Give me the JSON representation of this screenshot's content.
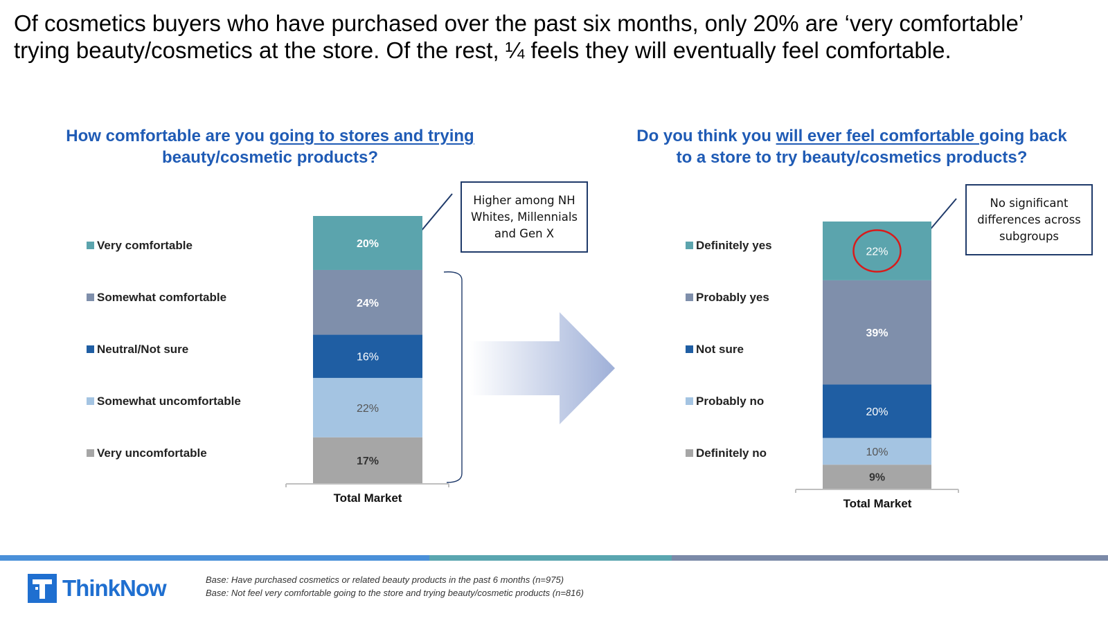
{
  "headline": "Of cosmetics buyers who have purchased over the past six months, only 20% are ‘very comfortable’ trying beauty/cosmetics at the store. Of the rest, ¼ feels they will eventually feel comfortable.",
  "left_question": {
    "part1": "How comfortable are you ",
    "part2_underlined": "going to stores and trying ",
    "part3": "beauty/cosmetic products?"
  },
  "right_question": {
    "part1": "Do you think you ",
    "part2_underlined": "will ever feel comfortable ",
    "part3": "going back to a store to try beauty/cosmetics products?"
  },
  "callouts": {
    "left": "Higher among NH Whites, Millennials and Gen X",
    "right": "No significant differences across subgroups"
  },
  "footer": {
    "logo_text": "ThinkNow",
    "base_1": "Base: Have purchased cosmetics or related beauty products in the past 6 months (n=975)",
    "base_2": "Base: Not feel very comfortable going to the store and trying beauty/cosmetic products (n=816)",
    "line_colors": [
      "#4a90d9",
      "#5aa6b0",
      "#7b8aa8"
    ]
  },
  "chart_data": [
    {
      "type": "bar",
      "stacked": true,
      "categories": [
        "Total Market"
      ],
      "ylim": [
        0,
        100
      ],
      "series": [
        {
          "name": "Very uncomfortable",
          "values": [
            17
          ],
          "label": "17%",
          "color": "#a6a6a6",
          "label_color": "#333333",
          "bold": true
        },
        {
          "name": "Somewhat uncomfortable",
          "values": [
            22
          ],
          "label": "22%",
          "color": "#a4c4e2",
          "label_color": "#555555",
          "bold": false
        },
        {
          "name": "Neutral/Not sure",
          "values": [
            16
          ],
          "label": "16%",
          "color": "#1f5ea3",
          "label_color": "#ffffff",
          "bold": false
        },
        {
          "name": "Somewhat comfortable",
          "values": [
            24
          ],
          "label": "24%",
          "color": "#7f8fab",
          "label_color": "#ffffff",
          "bold": true
        },
        {
          "name": "Very comfortable",
          "values": [
            20
          ],
          "label": "20%",
          "color": "#5ba4ad",
          "label_color": "#ffffff",
          "bold": true
        }
      ],
      "legend_order": [
        "Very comfortable",
        "Somewhat comfortable",
        "Neutral/Not sure",
        "Somewhat uncomfortable",
        "Very uncomfortable"
      ]
    },
    {
      "type": "bar",
      "stacked": true,
      "categories": [
        "Total Market"
      ],
      "ylim": [
        0,
        100
      ],
      "series": [
        {
          "name": "Definitely no",
          "values": [
            9
          ],
          "label": "9%",
          "color": "#a6a6a6",
          "label_color": "#333333",
          "bold": true
        },
        {
          "name": "Probably no",
          "values": [
            10
          ],
          "label": "10%",
          "color": "#a4c4e2",
          "label_color": "#555555",
          "bold": false
        },
        {
          "name": "Not sure",
          "values": [
            20
          ],
          "label": "20%",
          "color": "#1f5ea3",
          "label_color": "#ffffff",
          "bold": false
        },
        {
          "name": "Probably yes",
          "values": [
            39
          ],
          "label": "39%",
          "color": "#7f8fab",
          "label_color": "#ffffff",
          "bold": true
        },
        {
          "name": "Definitely yes",
          "values": [
            22
          ],
          "label": "22%",
          "color": "#5ba4ad",
          "label_color": "#ffffff",
          "bold": false,
          "circled": true
        }
      ],
      "legend_order": [
        "Definitely yes",
        "Probably yes",
        "Not sure",
        "Probably no",
        "Definitely no"
      ]
    }
  ]
}
